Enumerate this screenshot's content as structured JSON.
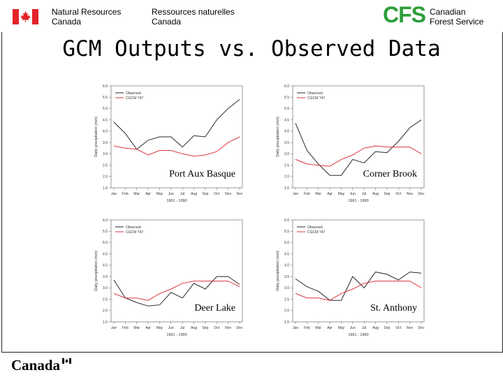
{
  "header": {
    "dept_en": "Natural Resources\nCanada",
    "dept_fr": "Ressources naturelles\nCanada",
    "cfs_logo": "CFS",
    "cfs_name": "Canadian\nForest Service"
  },
  "slide": {
    "title": "GCM Outputs vs. Observed Data"
  },
  "footer": {
    "wordmark": "Canada"
  },
  "colors": {
    "observed": "#2a2a2a",
    "cgcm": "#d9373a",
    "accent": "#2e9e3b",
    "flag_red": "#e3232b"
  },
  "chart_data": [
    {
      "type": "line",
      "title": "Port Aux Basque",
      "xlabel": "1961 - 1990",
      "ylabel": "Daily precipitation (mm)",
      "ylim": [
        1.5,
        6.0
      ],
      "yticks": [
        "1.5",
        "2.0",
        "2.5",
        "3.0",
        "3.5",
        "4.0",
        "4.5",
        "5.0",
        "5.5",
        "6.0"
      ],
      "categories": [
        "Jan",
        "Feb",
        "Mar",
        "Apr",
        "May",
        "Jun",
        "Jul",
        "Aug",
        "Sep",
        "Oct",
        "Nov",
        "Dec"
      ],
      "legend_position": "top-left",
      "series": [
        {
          "name": "Observed",
          "values": [
            4.4,
            3.9,
            3.2,
            3.6,
            3.75,
            3.75,
            3.3,
            3.8,
            3.75,
            4.5,
            5.0,
            5.4
          ]
        },
        {
          "name": "CGCM T47",
          "values": [
            3.35,
            3.25,
            3.2,
            2.95,
            3.15,
            3.15,
            3.0,
            2.9,
            2.95,
            3.1,
            3.5,
            3.75
          ]
        }
      ]
    },
    {
      "type": "line",
      "title": "Corner Brook",
      "xlabel": "1961 - 1990",
      "ylabel": "Daily precipitation (mm)",
      "ylim": [
        1.5,
        6.0
      ],
      "yticks": [
        "1.5",
        "2.0",
        "2.5",
        "3.0",
        "3.5",
        "4.0",
        "4.5",
        "5.0",
        "5.5",
        "6.0"
      ],
      "categories": [
        "Jan",
        "Feb",
        "Mar",
        "Apr",
        "May",
        "Jun",
        "Jul",
        "Aug",
        "Sep",
        "Oct",
        "Nov",
        "Dec"
      ],
      "legend_position": "top-left",
      "series": [
        {
          "name": "Observed",
          "values": [
            4.35,
            3.15,
            2.55,
            2.05,
            2.05,
            2.75,
            2.6,
            3.1,
            3.05,
            3.55,
            4.15,
            4.5
          ]
        },
        {
          "name": "CGCM T47",
          "values": [
            2.75,
            2.55,
            2.5,
            2.45,
            2.75,
            2.95,
            3.25,
            3.35,
            3.3,
            3.3,
            3.3,
            3.0
          ]
        }
      ]
    },
    {
      "type": "line",
      "title": "Deer Lake",
      "xlabel": "1961 - 1990",
      "ylabel": "Daily precipitation (mm)",
      "ylim": [
        1.5,
        6.0
      ],
      "yticks": [
        "1.5",
        "2.0",
        "2.5",
        "3.0",
        "3.5",
        "4.0",
        "4.5",
        "5.0",
        "5.5",
        "6.0"
      ],
      "categories": [
        "Jan",
        "Feb",
        "Mar",
        "Apr",
        "May",
        "Jun",
        "Jul",
        "Aug",
        "Sep",
        "Oct",
        "Nov",
        "Dec"
      ],
      "legend_position": "top-left",
      "series": [
        {
          "name": "Observed",
          "values": [
            3.35,
            2.55,
            2.35,
            2.2,
            2.25,
            2.8,
            2.55,
            3.2,
            2.95,
            3.5,
            3.5,
            3.15
          ]
        },
        {
          "name": "CGCM T47",
          "values": [
            2.75,
            2.55,
            2.55,
            2.45,
            2.75,
            2.95,
            3.2,
            3.3,
            3.3,
            3.3,
            3.3,
            3.05
          ]
        }
      ]
    },
    {
      "type": "line",
      "title": "St. Anthony",
      "xlabel": "1961 - 1990",
      "ylabel": "Daily precipitation (mm)",
      "ylim": [
        1.5,
        6.0
      ],
      "yticks": [
        "1.5",
        "2.0",
        "2.5",
        "3.0",
        "3.5",
        "4.0",
        "4.5",
        "5.0",
        "5.5",
        "6.0"
      ],
      "categories": [
        "Jan",
        "Feb",
        "Mar",
        "Apr",
        "May",
        "Jun",
        "Jul",
        "Aug",
        "Sep",
        "Oct",
        "Nov",
        "Dec"
      ],
      "legend_position": "top-left",
      "series": [
        {
          "name": "Observed",
          "values": [
            3.4,
            3.05,
            2.85,
            2.45,
            2.45,
            3.5,
            3.0,
            3.7,
            3.6,
            3.35,
            3.7,
            3.65
          ]
        },
        {
          "name": "CGCM T47",
          "values": [
            2.75,
            2.55,
            2.55,
            2.45,
            2.75,
            2.95,
            3.2,
            3.3,
            3.3,
            3.3,
            3.3,
            3.0
          ]
        }
      ]
    }
  ]
}
